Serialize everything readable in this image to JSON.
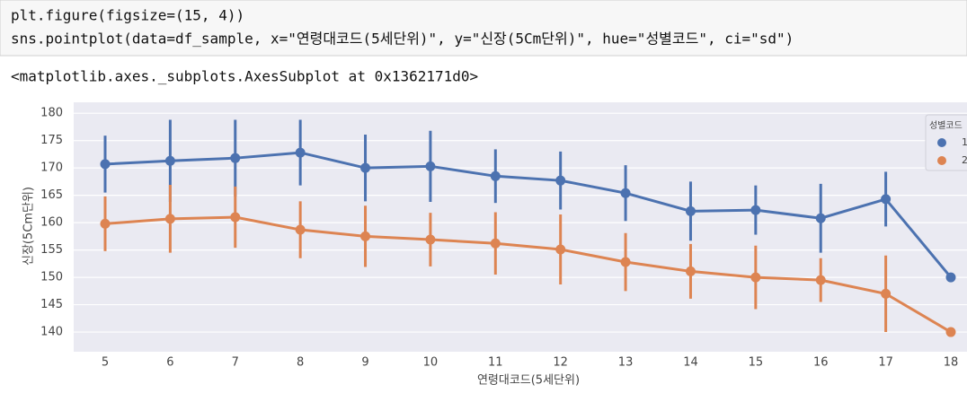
{
  "notebook": {
    "code_lines": [
      "plt.figure(figsize=(15, 4))",
      "sns.pointplot(data=df_sample, x=\"연령대코드(5세단위)\", y=\"신장(5Cm단위)\", hue=\"성별코드\", ci=\"sd\")"
    ],
    "output": "<matplotlib.axes._subplots.AxesSubplot at 0x1362171d0>"
  },
  "chart_data": {
    "type": "pointplot",
    "x_label": "연령대코드(5세단위)",
    "y_label": "신장(5Cm단위)",
    "categories": [
      "5",
      "6",
      "7",
      "8",
      "9",
      "10",
      "11",
      "12",
      "13",
      "14",
      "15",
      "16",
      "17",
      "18"
    ],
    "ylim": [
      136.4,
      182
    ],
    "yticks": [
      140,
      145,
      150,
      155,
      160,
      165,
      170,
      175,
      180
    ],
    "grid": true,
    "legend_title": "성별코드",
    "legend_position": "upper right",
    "series": [
      {
        "name": "1",
        "color": "#4c72b0",
        "values": [
          170.7,
          171.3,
          171.8,
          172.8,
          170.0,
          170.3,
          168.5,
          167.7,
          165.4,
          162.1,
          162.3,
          160.8,
          164.3,
          150.0
        ],
        "errors": [
          5.2,
          7.5,
          7,
          6,
          6.1,
          6.5,
          4.9,
          5.3,
          5.1,
          5.4,
          4.5,
          6.3,
          5,
          null
        ]
      },
      {
        "name": "2",
        "color": "#dd8452",
        "values": [
          159.8,
          160.7,
          161.0,
          158.7,
          157.5,
          156.9,
          156.2,
          155.1,
          152.8,
          151.1,
          150.0,
          149.5,
          147.0,
          140.0
        ],
        "errors": [
          5,
          6.2,
          5.6,
          5.2,
          5.6,
          4.9,
          5.7,
          6.4,
          5.3,
          5,
          5.8,
          4,
          7,
          null
        ]
      }
    ]
  }
}
